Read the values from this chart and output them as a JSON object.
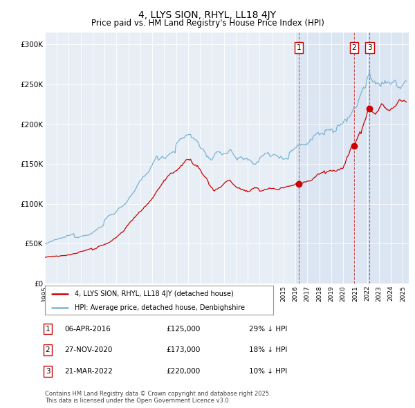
{
  "title": "4, LLYS SION, RHYL, LL18 4JY",
  "subtitle": "Price paid vs. HM Land Registry's House Price Index (HPI)",
  "title_fontsize": 10,
  "subtitle_fontsize": 8.5,
  "ylabel_ticks": [
    "£0",
    "£50K",
    "£100K",
    "£150K",
    "£200K",
    "£250K",
    "£300K"
  ],
  "ytick_values": [
    0,
    50000,
    100000,
    150000,
    200000,
    250000,
    300000
  ],
  "ylim": [
    0,
    315000
  ],
  "xlim_start": 1995.0,
  "xlim_end": 2025.5,
  "hpi_color": "#7ab3d4",
  "price_color": "#cc0000",
  "legend_label_price": "4, LLYS SION, RHYL, LL18 4JY (detached house)",
  "legend_label_hpi": "HPI: Average price, detached house, Denbighshire",
  "transaction1_date": 2016.27,
  "transaction1_price": 125000,
  "transaction1_label": "1",
  "transaction2_date": 2020.92,
  "transaction2_price": 173000,
  "transaction2_label": "2",
  "transaction3_date": 2022.22,
  "transaction3_price": 220000,
  "transaction3_label": "3",
  "table_entries": [
    {
      "num": "1",
      "date": "06-APR-2016",
      "price": "£125,000",
      "pct": "29% ↓ HPI"
    },
    {
      "num": "2",
      "date": "27-NOV-2020",
      "price": "£173,000",
      "pct": "18% ↓ HPI"
    },
    {
      "num": "3",
      "date": "21-MAR-2022",
      "price": "£220,000",
      "pct": "10% ↓ HPI"
    }
  ],
  "footnote": "Contains HM Land Registry data © Crown copyright and database right 2025.\nThis data is licensed under the Open Government Licence v3.0.",
  "background_color": "#e8eef5",
  "chart_bg_left": "#edf2f7",
  "chart_bg_right": "#dde8f0"
}
